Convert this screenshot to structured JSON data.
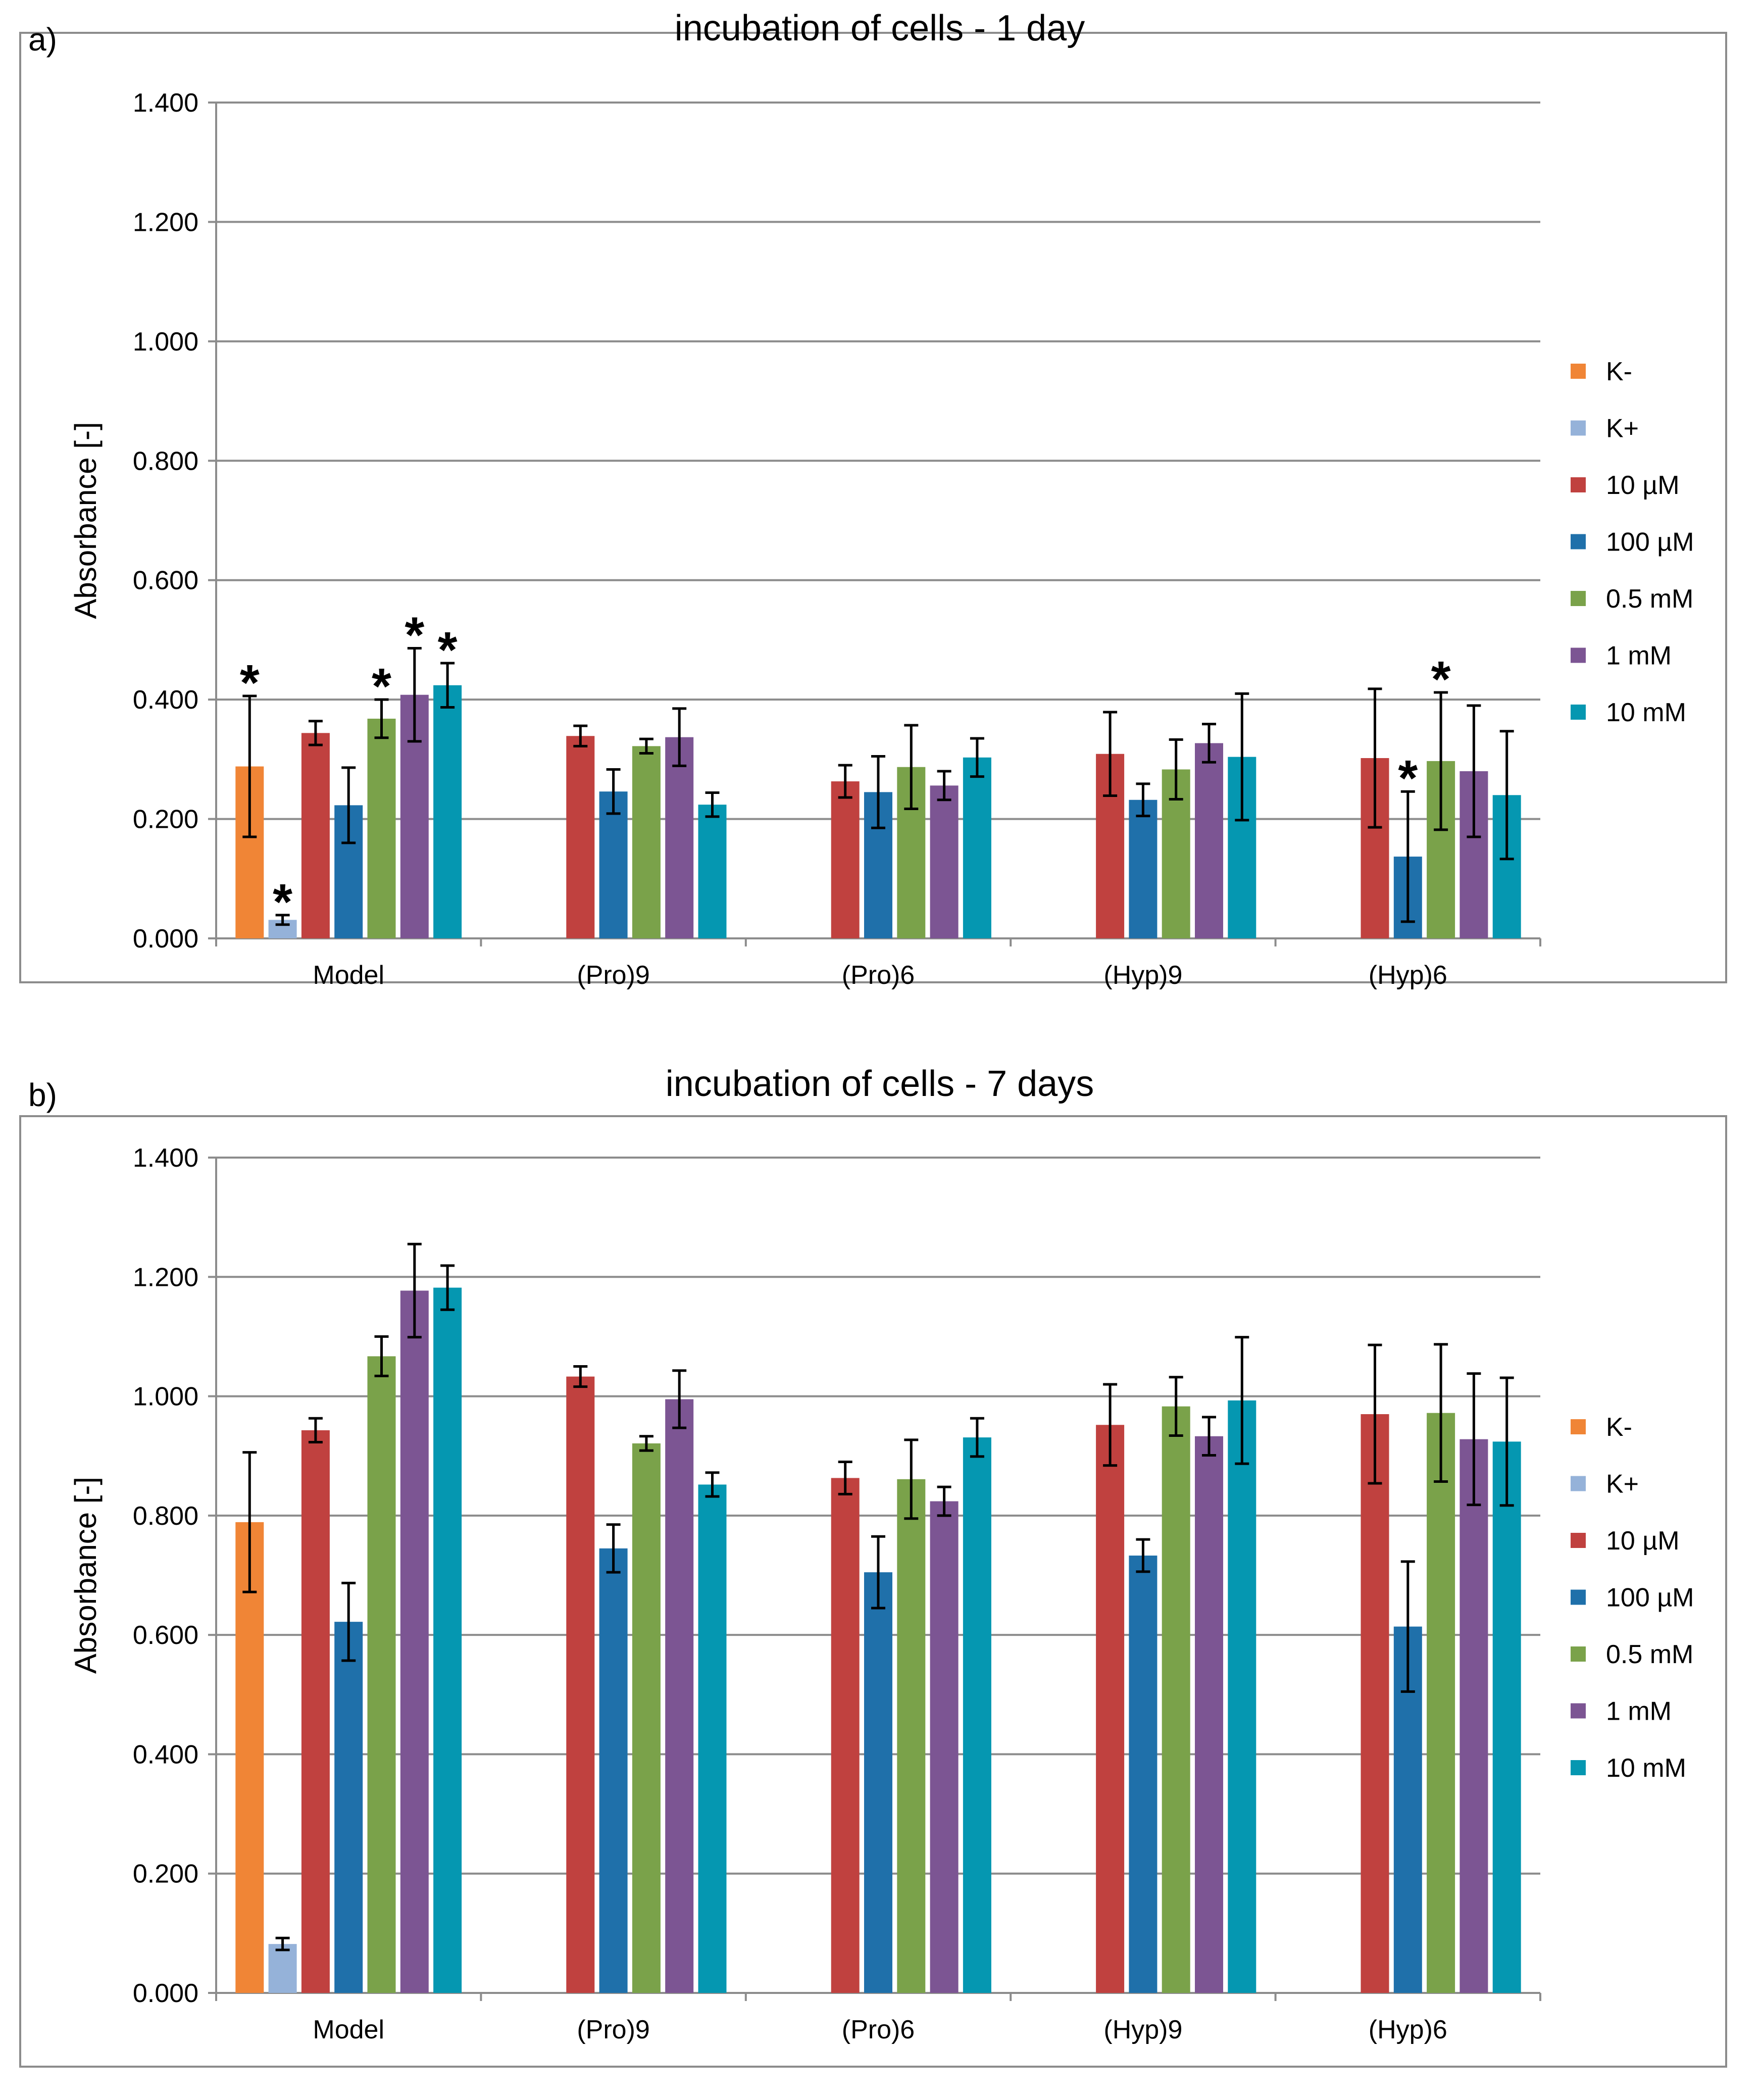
{
  "panels": [
    {
      "panel_label": "a)",
      "title": "incubation of cells - 1 day",
      "ylabel": "Absorbance [-]",
      "ylim": [
        0,
        1.4
      ],
      "yticks": [
        "0.000",
        "0.200",
        "0.400",
        "0.600",
        "0.800",
        "1.000",
        "1.200",
        "1.400"
      ],
      "groups": [
        "Model",
        "(Pro)9",
        "(Pro)6",
        "(Hyp)9",
        "(Hyp)6"
      ],
      "legend": [
        "K-",
        "K+",
        "10 µM",
        "100 µM",
        "0.5 mM",
        "1 mM",
        "10 mM"
      ]
    },
    {
      "panel_label": "b)",
      "title": "incubation of cells - 7 days",
      "ylabel": "Absorbance [-]",
      "ylim": [
        0,
        1.4
      ],
      "yticks": [
        "0.000",
        "0.200",
        "0.400",
        "0.600",
        "0.800",
        "1.000",
        "1.200",
        "1.400"
      ],
      "groups": [
        "Model",
        "(Pro)9",
        "(Pro)6",
        "(Hyp)9",
        "(Hyp)6"
      ],
      "legend": [
        "K-",
        "K+",
        "10 µM",
        "100 µM",
        "0.5 mM",
        "1 mM",
        "10 mM"
      ]
    }
  ],
  "series_colors": [
    "#F08536",
    "#95B2D9",
    "#C0413F",
    "#1F70AA",
    "#7AA24A",
    "#7C5593",
    "#0597B1"
  ],
  "significance_marker": "*",
  "chart_data": [
    {
      "type": "bar",
      "title": "incubation of cells - 1 day",
      "xlabel": "",
      "ylabel": "Absorbance [-]",
      "ylim": [
        0,
        1.4
      ],
      "categories": [
        "Model",
        "(Pro)9",
        "(Pro)6",
        "(Hyp)9",
        "(Hyp)6"
      ],
      "legend_position": "right",
      "series": [
        {
          "name": "K-",
          "values": [
            0.288,
            null,
            null,
            null,
            null
          ],
          "errors": [
            0.118,
            null,
            null,
            null,
            null
          ],
          "significant": [
            true,
            false,
            false,
            false,
            false
          ]
        },
        {
          "name": "K+",
          "values": [
            0.031,
            null,
            null,
            null,
            null
          ],
          "errors": [
            0.008,
            null,
            null,
            null,
            null
          ],
          "significant": [
            true,
            false,
            false,
            false,
            false
          ]
        },
        {
          "name": "10 µM",
          "values": [
            0.344,
            0.339,
            0.263,
            0.309,
            0.302
          ],
          "errors": [
            0.02,
            0.017,
            0.027,
            0.07,
            0.116
          ],
          "significant": [
            false,
            false,
            false,
            false,
            false
          ]
        },
        {
          "name": "100 µM",
          "values": [
            0.223,
            0.246,
            0.245,
            0.232,
            0.137
          ],
          "errors": [
            0.063,
            0.037,
            0.06,
            0.027,
            0.109
          ],
          "significant": [
            false,
            false,
            false,
            false,
            true
          ]
        },
        {
          "name": "0.5 mM",
          "values": [
            0.368,
            0.322,
            0.287,
            0.283,
            0.297
          ],
          "errors": [
            0.032,
            0.012,
            0.07,
            0.05,
            0.115
          ],
          "significant": [
            true,
            false,
            false,
            false,
            true
          ]
        },
        {
          "name": "1 mM",
          "values": [
            0.408,
            0.337,
            0.256,
            0.327,
            0.28
          ],
          "errors": [
            0.078,
            0.048,
            0.024,
            0.032,
            0.11
          ],
          "significant": [
            true,
            false,
            false,
            false,
            false
          ]
        },
        {
          "name": "10 mM",
          "values": [
            0.424,
            0.224,
            0.303,
            0.304,
            0.24
          ],
          "errors": [
            0.037,
            0.02,
            0.032,
            0.106,
            0.107
          ],
          "significant": [
            true,
            false,
            false,
            false,
            false
          ]
        }
      ]
    },
    {
      "type": "bar",
      "title": "incubation of cells - 7 days",
      "xlabel": "",
      "ylabel": "Absorbance [-]",
      "ylim": [
        0,
        1.4
      ],
      "categories": [
        "Model",
        "(Pro)9",
        "(Pro)6",
        "(Hyp)9",
        "(Hyp)6"
      ],
      "legend_position": "right",
      "series": [
        {
          "name": "K-",
          "values": [
            0.789,
            null,
            null,
            null,
            null
          ],
          "errors": [
            0.117,
            null,
            null,
            null,
            null
          ],
          "significant": [
            false,
            false,
            false,
            false,
            false
          ]
        },
        {
          "name": "K+",
          "values": [
            0.082,
            null,
            null,
            null,
            null
          ],
          "errors": [
            0.01,
            null,
            null,
            null,
            null
          ],
          "significant": [
            false,
            false,
            false,
            false,
            false
          ]
        },
        {
          "name": "10 µM",
          "values": [
            0.943,
            1.033,
            0.863,
            0.952,
            0.97
          ],
          "errors": [
            0.02,
            0.017,
            0.027,
            0.068,
            0.116
          ],
          "significant": [
            false,
            false,
            false,
            false,
            false
          ]
        },
        {
          "name": "100 µM",
          "values": [
            0.622,
            0.745,
            0.705,
            0.733,
            0.614
          ],
          "errors": [
            0.065,
            0.04,
            0.06,
            0.027,
            0.109
          ],
          "significant": [
            false,
            false,
            false,
            false,
            false
          ]
        },
        {
          "name": "0.5 mM",
          "values": [
            1.067,
            0.921,
            0.861,
            0.983,
            0.972
          ],
          "errors": [
            0.033,
            0.012,
            0.066,
            0.049,
            0.115
          ],
          "significant": [
            false,
            false,
            false,
            false,
            false
          ]
        },
        {
          "name": "1 mM",
          "values": [
            1.177,
            0.995,
            0.824,
            0.933,
            0.928
          ],
          "errors": [
            0.078,
            0.048,
            0.024,
            0.032,
            0.11
          ],
          "significant": [
            false,
            false,
            false,
            false,
            false
          ]
        },
        {
          "name": "10 mM",
          "values": [
            1.182,
            0.852,
            0.931,
            0.993,
            0.924
          ],
          "errors": [
            0.037,
            0.02,
            0.032,
            0.106,
            0.107
          ],
          "significant": [
            false,
            false,
            false,
            false,
            false
          ]
        }
      ]
    }
  ]
}
